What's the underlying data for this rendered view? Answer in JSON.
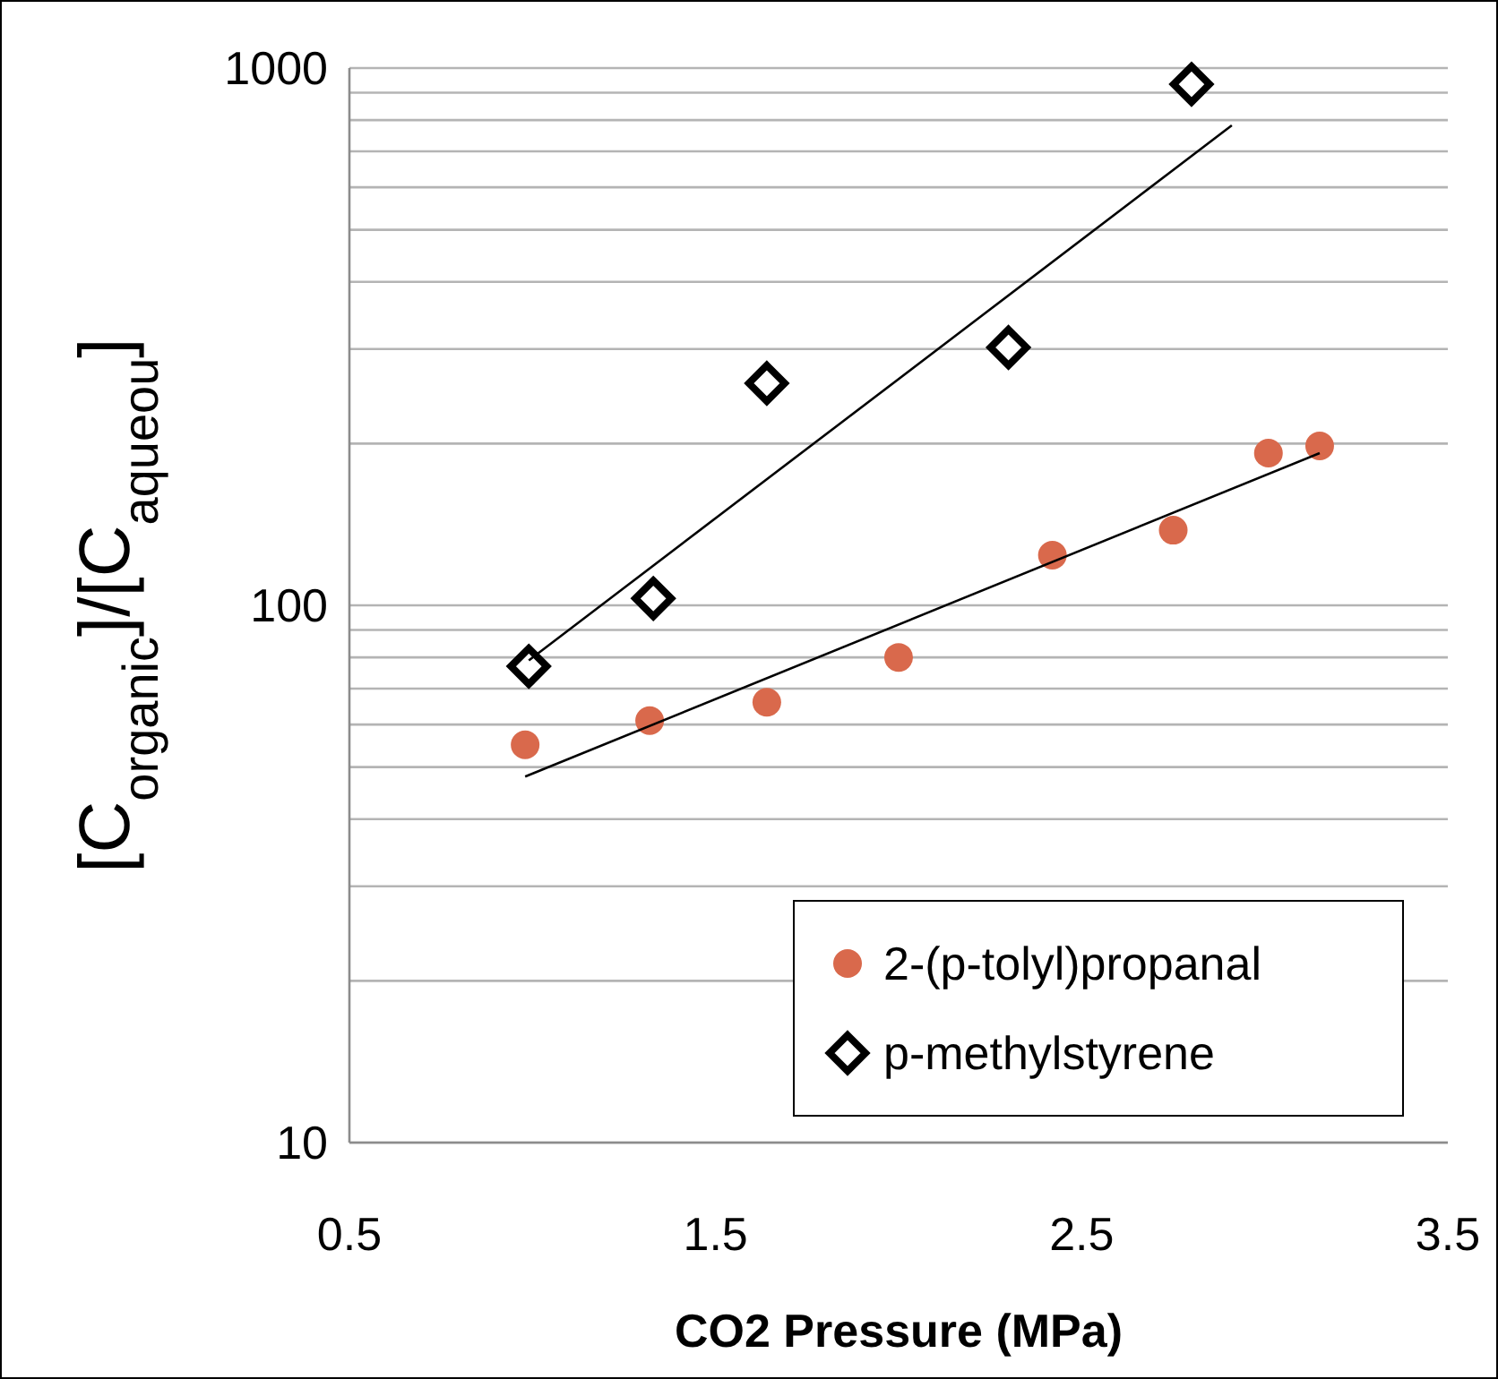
{
  "chart_data": {
    "type": "scatter",
    "xlabel": "CO2 Pressure (MPa)",
    "ylabel": "[C$_{organic}$]/[C$_{aqueou}$]",
    "log": "y",
    "grid": "y",
    "legend": "bottom right",
    "xlim": [
      0.5,
      3.5
    ],
    "xticks": [
      0.5,
      1.5,
      2.5,
      3.5
    ],
    "ylim": [
      10,
      1000
    ],
    "yticks": [
      10,
      {
        "value": 20,
        "label": null
      },
      {
        "value": 30,
        "label": null
      },
      {
        "value": 40,
        "label": null
      },
      {
        "value": 50,
        "label": null
      },
      {
        "value": 60,
        "label": null
      },
      {
        "value": 70,
        "label": null
      },
      {
        "value": 80,
        "label": null
      },
      {
        "value": 90,
        "label": null
      },
      100,
      {
        "value": 200,
        "label": null
      },
      {
        "value": 300,
        "label": null
      },
      {
        "value": 400,
        "label": null
      },
      {
        "value": 500,
        "label": null
      },
      {
        "value": 600,
        "label": null
      },
      {
        "value": 700,
        "label": null
      },
      {
        "value": 800,
        "label": null
      },
      {
        "value": 900,
        "label": null
      },
      1000
    ],
    "series": [
      {
        "name": "2-(p-tolyl)propanal",
        "marker": "circle",
        "color": "#d9694c",
        "x": [
          0.98,
          1.32,
          1.64,
          2.0,
          2.42,
          2.75,
          3.01,
          3.15
        ],
        "values": [
          55,
          61,
          66,
          80,
          124,
          138,
          192,
          198
        ]
      },
      {
        "name": "p-methylstyrene",
        "marker": "diamond",
        "color": "#000000",
        "x": [
          0.99,
          1.33,
          1.64,
          2.3,
          2.8
        ],
        "values": [
          77,
          103,
          259,
          302,
          933
        ]
      },
      {
        "type": "line",
        "marker": "none",
        "color": "#000000",
        "x": [
          0.98,
          3.15
        ],
        "values": [
          48,
          192
        ]
      },
      {
        "type": "line",
        "marker": "none",
        "color": "#000000",
        "x": [
          0.99,
          2.91
        ],
        "values": [
          79,
          782
        ]
      }
    ]
  }
}
